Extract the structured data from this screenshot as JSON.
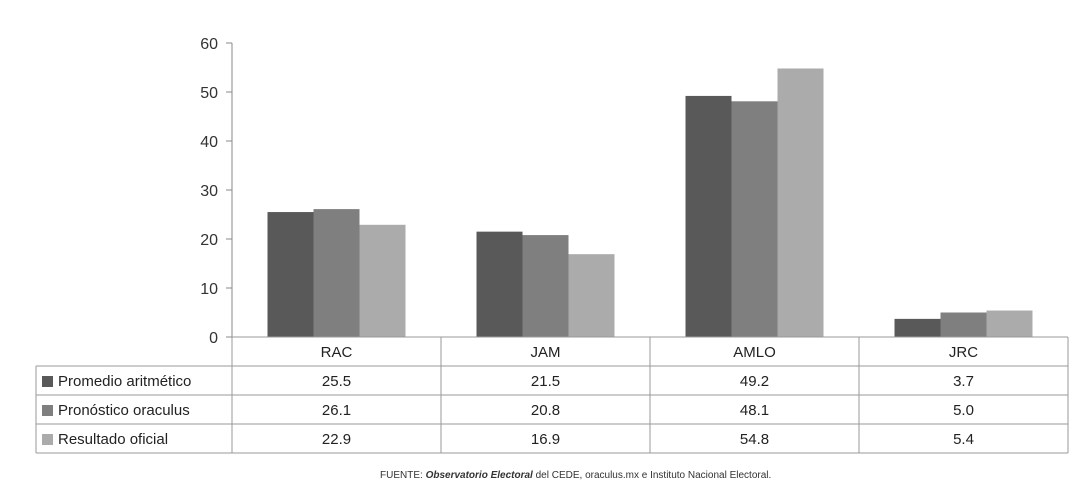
{
  "chart_data": {
    "type": "bar",
    "categories": [
      "RAC",
      "JAM",
      "AMLO",
      "JRC"
    ],
    "series": [
      {
        "name": "Promedio aritmético",
        "values": [
          25.5,
          21.5,
          49.2,
          3.7
        ],
        "labels": [
          "25.5",
          "21.5",
          "49.2",
          "3.7"
        ],
        "color": "#595959"
      },
      {
        "name": "Pronóstico oraculus",
        "values": [
          26.1,
          20.8,
          48.1,
          5.0
        ],
        "labels": [
          "26.1",
          "20.8",
          "48.1",
          "5.0"
        ],
        "color": "#7f7f7f"
      },
      {
        "name": "Resultado oficial",
        "values": [
          22.9,
          16.9,
          54.8,
          5.4
        ],
        "labels": [
          "22.9",
          "16.9",
          "54.8",
          "5.4"
        ],
        "color": "#ababab"
      }
    ],
    "ylim": [
      0,
      60
    ],
    "yticks": [
      "0",
      "10",
      "20",
      "30",
      "40",
      "50",
      "60"
    ],
    "xlabel": "",
    "ylabel": "",
    "grid": false,
    "legend": "data-table"
  },
  "source": {
    "prefix": "FUENTE: ",
    "emphasis": "Observatorio Electoral",
    "suffix": " del CEDE, oraculus.mx e Instituto Nacional Electoral."
  }
}
